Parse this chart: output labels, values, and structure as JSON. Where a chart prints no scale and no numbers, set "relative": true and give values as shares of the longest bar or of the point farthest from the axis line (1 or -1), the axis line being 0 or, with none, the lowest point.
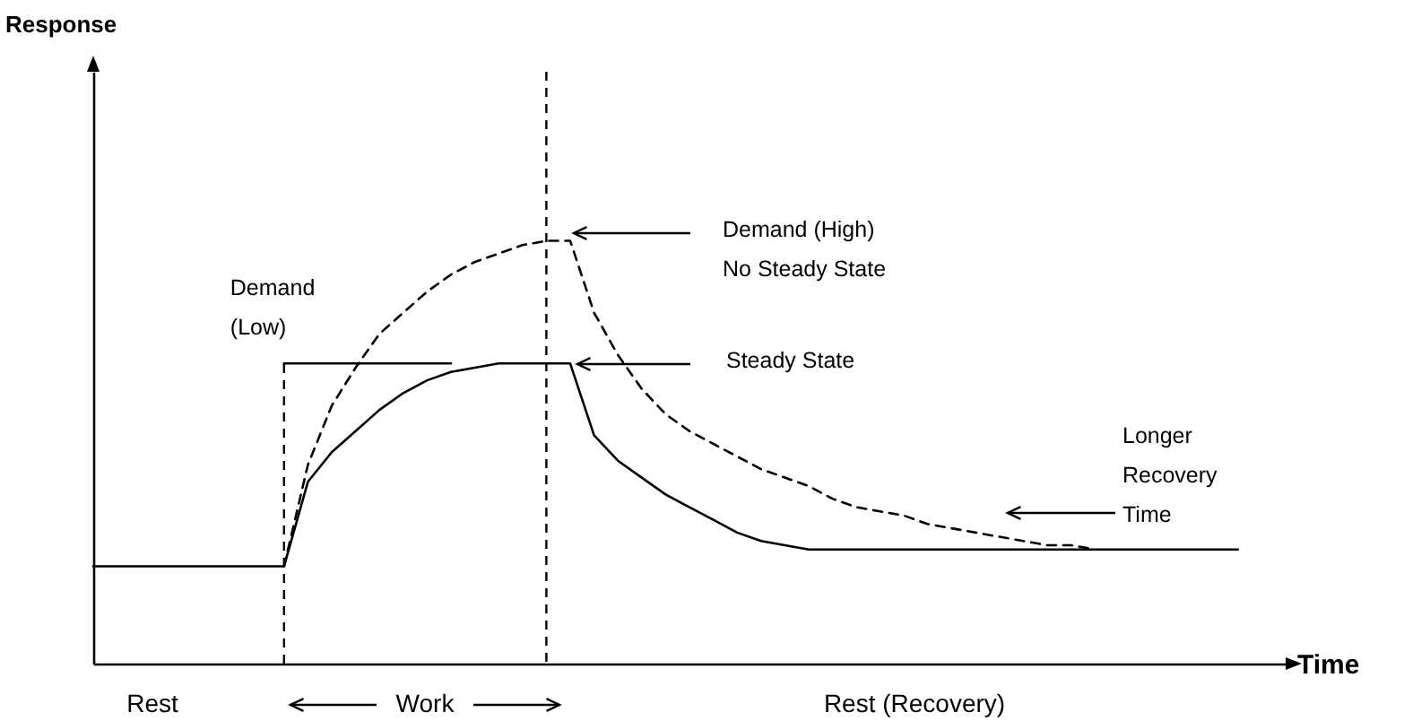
{
  "chart_data": {
    "type": "line",
    "relative": true,
    "xlabel": "Time",
    "categories": [
      null,
      null,
      null,
      null,
      null,
      null,
      null,
      null,
      null,
      null,
      null,
      null,
      null,
      null,
      null,
      null,
      null,
      null,
      null,
      null,
      null,
      null,
      null,
      null,
      null,
      null,
      null,
      null,
      null,
      null,
      null,
      null,
      null,
      null,
      null,
      null,
      null,
      null,
      null,
      null,
      null,
      null,
      null,
      null,
      null,
      null,
      null,
      null,
      null,
      null,
      null
    ],
    "series": [
      {
        "color": "#000000",
        "line_style": "solid",
        "values": [
          0.23,
          0.23,
          0.23,
          0.23,
          0.23,
          0.23,
          0.23,
          0.23,
          0.23,
          0.43,
          0.5,
          0.55,
          0.6,
          0.64,
          0.67,
          0.69,
          0.7,
          0.71,
          0.71,
          0.71,
          0.71,
          0.54,
          0.48,
          0.44,
          0.4,
          0.37,
          0.34,
          0.31,
          0.29,
          0.28,
          0.27,
          0.27,
          0.27,
          0.27,
          0.27,
          0.27,
          0.27,
          0.27,
          0.27,
          0.27,
          0.27,
          0.27,
          0.27,
          0.27,
          0.27,
          0.27,
          0.27,
          0.27,
          0.27,
          null,
          null
        ]
      },
      {
        "color": "#000000",
        "line_style": "dashed",
        "values": [
          null,
          null,
          null,
          null,
          null,
          null,
          null,
          null,
          0.23,
          0.47,
          0.61,
          0.7,
          0.78,
          0.83,
          0.88,
          0.92,
          0.95,
          0.97,
          0.99,
          1.0,
          1.0,
          0.83,
          0.73,
          0.65,
          0.59,
          0.55,
          0.52,
          0.49,
          0.46,
          0.44,
          0.42,
          0.39,
          0.37,
          0.36,
          0.35,
          0.33,
          0.32,
          0.31,
          0.3,
          0.29,
          0.28,
          0.28,
          0.27,
          null,
          null,
          null,
          null,
          null,
          null,
          null,
          null
        ]
      },
      {
        "name": "Demand (Low)",
        "color": "#000000",
        "line_style": "solid",
        "values": [
          null,
          null,
          null,
          null,
          null,
          null,
          null,
          null,
          0.71,
          0.71,
          0.71,
          0.71,
          0.71,
          0.71,
          0.71,
          0.71,
          null,
          null,
          null,
          null,
          null,
          null,
          null,
          null,
          null,
          null,
          null,
          null,
          null,
          null,
          null,
          null,
          null,
          null,
          null,
          null,
          null,
          null,
          null,
          null,
          null,
          null,
          null,
          null,
          null,
          null,
          null,
          null,
          null,
          null,
          null
        ]
      }
    ],
    "annotations": [
      "Demand (High)\nNo Steady State",
      "Steady State",
      "Longer\nRecovery\nTime",
      "Rest",
      "Work",
      "Rest (Recovery)",
      "Response"
    ]
  }
}
